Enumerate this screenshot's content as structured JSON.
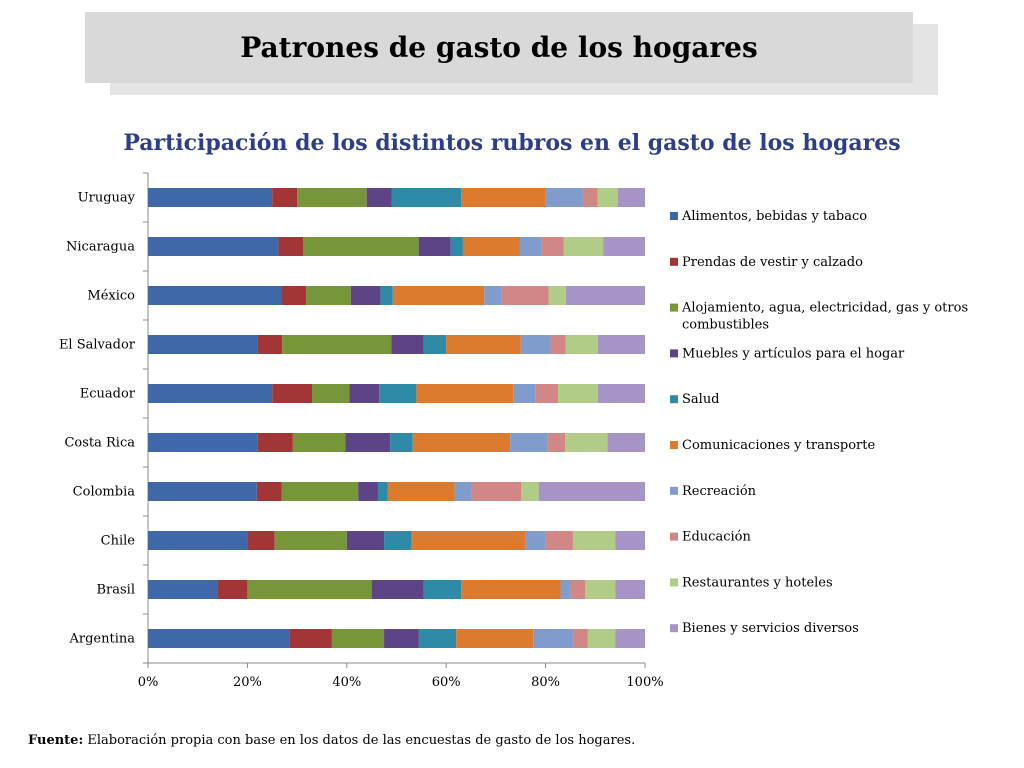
{
  "slide": {
    "title": "Patrones de gasto de los hogares",
    "source_label": "Fuente:",
    "source_text": " Elaboración propia con base en los datos de las encuestas de gasto de los hogares."
  },
  "chart_data": {
    "type": "bar",
    "orientation": "horizontal",
    "stacked": "percent",
    "title": "Participación de los distintos rubros en el gasto de los hogares",
    "categories": [
      "Uruguay",
      "Nicaragua",
      "México",
      "El Salvador",
      "Ecuador",
      "Costa Rica",
      "Colombia",
      "Chile",
      "Brasil",
      "Argentina"
    ],
    "x_ticks": [
      "0%",
      "20%",
      "40%",
      "60%",
      "80%",
      "100%"
    ],
    "xlim": [
      0,
      100
    ],
    "legend_position": "right",
    "series": [
      {
        "name": "Alimentos, bebidas y tabaco",
        "color": "#3f68a8",
        "values": [
          25,
          26.5,
          27,
          22,
          25,
          22,
          22,
          20,
          14,
          28.5
        ]
      },
      {
        "name": "Prendas de vestir y calzado",
        "color": "#a23535",
        "values": [
          5,
          5,
          5,
          5,
          8,
          7,
          5,
          5.5,
          6,
          8.5
        ]
      },
      {
        "name": "Alojamiento, agua, electricidad, gas y otros combustibles",
        "color": "#77963a",
        "values": [
          14,
          23.5,
          9,
          22,
          7.5,
          10.5,
          15.5,
          14.5,
          25,
          10.5
        ]
      },
      {
        "name": "Muebles y artículos para el hogar",
        "color": "#5d4486",
        "values": [
          5,
          6.5,
          6,
          6.5,
          6,
          9,
          4,
          7.5,
          10.5,
          7
        ]
      },
      {
        "name": "Salud",
        "color": "#2f8aa8",
        "values": [
          14,
          2.5,
          2.5,
          4.5,
          7.5,
          4.5,
          2,
          5.5,
          7.5,
          7.5
        ]
      },
      {
        "name": "Comunicaciones y transporte",
        "color": "#dc7a2e",
        "values": [
          17,
          11.5,
          18.5,
          15,
          19.5,
          19.5,
          13.5,
          23,
          20,
          15.5
        ]
      },
      {
        "name": "Recreación",
        "color": "#7f9ccc",
        "values": [
          7.5,
          4.5,
          3.5,
          6,
          4.5,
          7.5,
          3.5,
          4,
          2,
          8
        ]
      },
      {
        "name": "Educación",
        "color": "#d28787",
        "values": [
          3,
          4.5,
          9.5,
          3,
          4.5,
          3.5,
          10,
          5.5,
          3,
          3
        ]
      },
      {
        "name": "Restaurantes y hoteles",
        "color": "#b1cc86",
        "values": [
          4,
          8,
          3.5,
          6.5,
          8,
          8.5,
          3.5,
          8.5,
          6,
          5.5
        ]
      },
      {
        "name": "Bienes y servicios diversos",
        "color": "#a794c6",
        "values": [
          5.5,
          8.5,
          16,
          9.5,
          9.5,
          7.5,
          21.5,
          6,
          6,
          6
        ]
      }
    ]
  }
}
